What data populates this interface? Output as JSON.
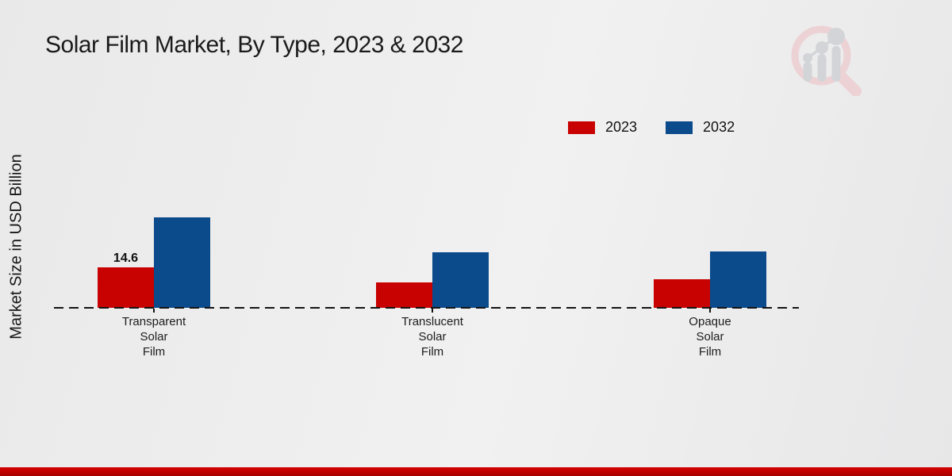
{
  "header": {
    "title": "Solar Film Market, By Type, 2023 & 2032"
  },
  "chart_data": {
    "type": "bar",
    "title": "Solar Film Market, By Type, 2023 & 2032",
    "xlabel": "",
    "ylabel": "Market Size in USD Billion",
    "categories": [
      "Transparent Solar Film",
      "Translucent Solar Film",
      "Opaque Solar Film"
    ],
    "series": [
      {
        "name": "2023",
        "color": "#c80101",
        "values": [
          14.6,
          9.2,
          10.2
        ]
      },
      {
        "name": "2032",
        "color": "#0b4a8b",
        "values": [
          32.5,
          20.0,
          20.4
        ]
      }
    ],
    "annotations": [
      {
        "series_index": 0,
        "category_index": 0,
        "text": "14.6"
      }
    ],
    "ylim": [
      0,
      35
    ],
    "grid": false,
    "axis_visible": false,
    "baseline_style": "dashed",
    "axis_color": "#141414",
    "legend_position": "top-right"
  },
  "legend": {
    "items": [
      {
        "label": "2023",
        "color": "#c80101"
      },
      {
        "label": "2032",
        "color": "#0b4a8b"
      }
    ]
  },
  "watermark": {
    "name": "magnifier-bar-chart-logo",
    "pink": "#ecd2d5",
    "gray": "#d3d4d8"
  },
  "footer": {
    "accent_color": "#c00000"
  }
}
